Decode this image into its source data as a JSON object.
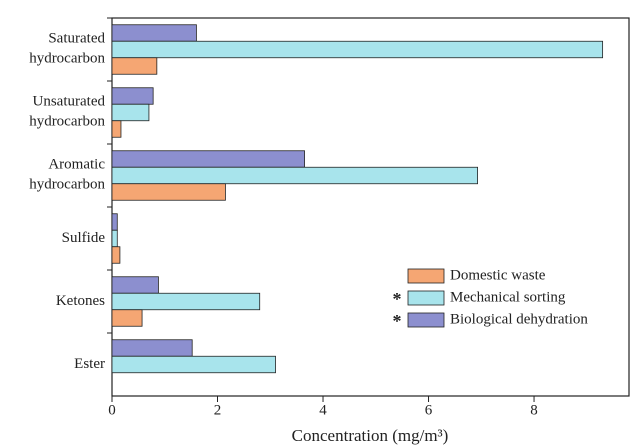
{
  "chart_data": {
    "type": "barh",
    "xlabel": "Concentration (mg/m³)",
    "categories": [
      "Saturated hydrocarbon",
      "Unsaturated hydrocarbon",
      "Aromatic hydrocarbon",
      "Sulfide",
      "Ketones",
      "Ester"
    ],
    "series": [
      {
        "name": "Biological dehydration",
        "color": "#8c8fcf",
        "note": "*",
        "values": [
          1.6,
          0.78,
          3.65,
          0.1,
          0.88,
          1.52
        ]
      },
      {
        "name": "Mechanical sorting",
        "color": "#a8e4ec",
        "note": "*",
        "values": [
          9.3,
          0.7,
          6.93,
          0.1,
          2.8,
          3.1
        ]
      },
      {
        "name": "Domestic waste",
        "color": "#f5a673",
        "values": [
          0.85,
          0.17,
          2.15,
          0.15,
          0.57,
          null
        ]
      }
    ],
    "xlim": [
      0,
      9.8
    ],
    "xticks": [
      0,
      2,
      4,
      6,
      8
    ]
  }
}
